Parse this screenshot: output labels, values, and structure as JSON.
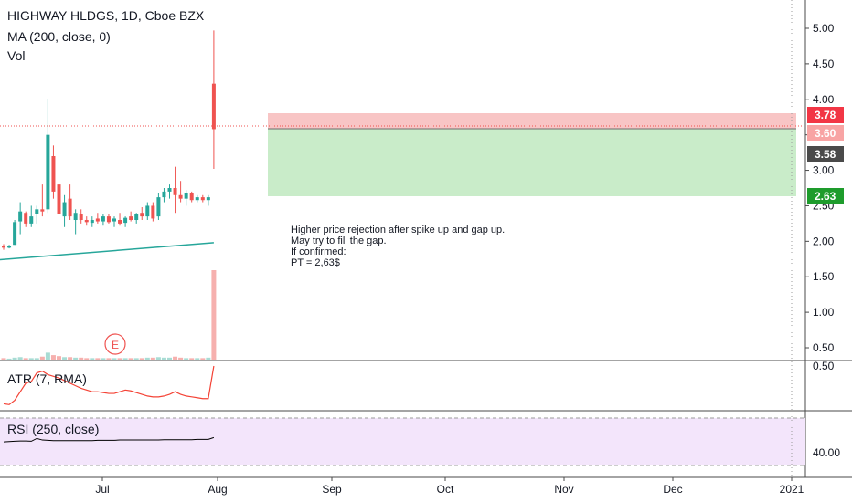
{
  "header": {
    "symbol_line": "HIGHWAY HLDGS, 1D, Cboe BZX",
    "ma_label": "MA (200, close, 0)",
    "vol_label": "Vol"
  },
  "earnings_marker": "E",
  "annotation": {
    "lines": [
      "Higher price rejection after spike up and gap up.",
      "May try to fill the gap.",
      "If confirmed:",
      "PT = 2,63$"
    ]
  },
  "price_tags": {
    "stop": "3.78",
    "entry": "3.60",
    "last": "3.58",
    "target": "2.63"
  },
  "colors": {
    "up": "#26a69a",
    "down": "#ef5350",
    "ma": "#26a69a",
    "atr": "#f44336",
    "rsi": "#000000",
    "stop_zone": "#f8c5c5",
    "profit_zone": "#c9ecc9",
    "rsi_band": "#f3e5fb",
    "tag_red": "#f23645",
    "tag_green": "#1e9c2c",
    "tag_gray": "#4a4a4a"
  },
  "chart_data": [
    {
      "type": "candlestick",
      "title": "HIGHWAY HLDGS, 1D, Cboe BZX",
      "ylim": [
        0.4,
        5.2
      ],
      "y_ticks": [
        "5.00",
        "4.50",
        "4.00",
        "3.50",
        "3.00",
        "2.50",
        "2.00",
        "1.50",
        "1.00",
        "0.50"
      ],
      "x_ticks": [
        "Jul",
        "Aug",
        "Sep",
        "Oct",
        "Nov",
        "Dec",
        "2021"
      ],
      "candles": [
        {
          "o": 1.93,
          "h": 1.96,
          "l": 1.88,
          "c": 1.91
        },
        {
          "o": 1.91,
          "h": 1.95,
          "l": 1.9,
          "c": 1.93
        },
        {
          "o": 1.95,
          "h": 2.3,
          "l": 1.95,
          "c": 2.27
        },
        {
          "o": 2.28,
          "h": 2.55,
          "l": 2.1,
          "c": 2.42
        },
        {
          "o": 2.4,
          "h": 2.42,
          "l": 2.2,
          "c": 2.25
        },
        {
          "o": 2.25,
          "h": 2.5,
          "l": 2.2,
          "c": 2.35
        },
        {
          "o": 2.38,
          "h": 2.5,
          "l": 2.25,
          "c": 2.45
        },
        {
          "o": 2.45,
          "h": 2.8,
          "l": 2.35,
          "c": 2.42
        },
        {
          "o": 2.45,
          "h": 4.0,
          "l": 2.4,
          "c": 3.5
        },
        {
          "o": 3.2,
          "h": 3.35,
          "l": 2.6,
          "c": 2.7
        },
        {
          "o": 2.8,
          "h": 3.0,
          "l": 2.3,
          "c": 2.38
        },
        {
          "o": 2.35,
          "h": 2.65,
          "l": 2.2,
          "c": 2.55
        },
        {
          "o": 2.6,
          "h": 2.8,
          "l": 2.3,
          "c": 2.35
        },
        {
          "o": 2.3,
          "h": 2.45,
          "l": 2.1,
          "c": 2.4
        },
        {
          "o": 2.38,
          "h": 2.45,
          "l": 2.25,
          "c": 2.3
        },
        {
          "o": 2.3,
          "h": 2.35,
          "l": 2.22,
          "c": 2.27
        },
        {
          "o": 2.26,
          "h": 2.35,
          "l": 2.2,
          "c": 2.3
        },
        {
          "o": 2.32,
          "h": 2.4,
          "l": 2.25,
          "c": 2.28
        },
        {
          "o": 2.28,
          "h": 2.38,
          "l": 2.22,
          "c": 2.35
        },
        {
          "o": 2.35,
          "h": 2.38,
          "l": 2.25,
          "c": 2.27
        },
        {
          "o": 2.28,
          "h": 2.35,
          "l": 2.2,
          "c": 2.32
        },
        {
          "o": 2.3,
          "h": 2.4,
          "l": 2.22,
          "c": 2.25
        },
        {
          "o": 2.26,
          "h": 2.35,
          "l": 2.2,
          "c": 2.33
        },
        {
          "o": 2.35,
          "h": 2.42,
          "l": 2.28,
          "c": 2.3
        },
        {
          "o": 2.3,
          "h": 2.4,
          "l": 2.25,
          "c": 2.38
        },
        {
          "o": 2.4,
          "h": 2.48,
          "l": 2.3,
          "c": 2.35
        },
        {
          "o": 2.35,
          "h": 2.55,
          "l": 2.3,
          "c": 2.5
        },
        {
          "o": 2.5,
          "h": 2.55,
          "l": 2.28,
          "c": 2.32
        },
        {
          "o": 2.35,
          "h": 2.68,
          "l": 2.3,
          "c": 2.62
        },
        {
          "o": 2.62,
          "h": 2.75,
          "l": 2.55,
          "c": 2.7
        },
        {
          "o": 2.7,
          "h": 2.8,
          "l": 2.6,
          "c": 2.75
        },
        {
          "o": 2.75,
          "h": 3.05,
          "l": 2.4,
          "c": 2.65
        },
        {
          "o": 2.65,
          "h": 2.85,
          "l": 2.55,
          "c": 2.6
        },
        {
          "o": 2.6,
          "h": 2.72,
          "l": 2.5,
          "c": 2.68
        },
        {
          "o": 2.68,
          "h": 2.7,
          "l": 2.55,
          "c": 2.58
        },
        {
          "o": 2.58,
          "h": 2.65,
          "l": 2.55,
          "c": 2.62
        },
        {
          "o": 2.62,
          "h": 2.65,
          "l": 2.55,
          "c": 2.58
        },
        {
          "o": 2.58,
          "h": 2.65,
          "l": 2.5,
          "c": 2.62
        },
        {
          "o": 4.22,
          "h": 4.97,
          "l": 3.02,
          "c": 3.58
        }
      ],
      "volumes": [
        0.3,
        0.2,
        0.4,
        0.5,
        0.3,
        0.3,
        0.3,
        0.6,
        1.4,
        0.9,
        0.7,
        0.5,
        0.5,
        0.4,
        0.4,
        0.3,
        0.3,
        0.3,
        0.3,
        0.3,
        0.3,
        0.3,
        0.3,
        0.3,
        0.3,
        0.3,
        0.4,
        0.4,
        0.5,
        0.4,
        0.4,
        0.6,
        0.4,
        0.3,
        0.3,
        0.3,
        0.3,
        0.4,
        18.0
      ],
      "ma_200": {
        "start": 1.83,
        "end": 1.98
      },
      "long_short_position": {
        "stop": 3.78,
        "entry": 3.6,
        "target": 2.63
      }
    },
    {
      "type": "line",
      "title": "ATR (7, RMA)",
      "y_ticks": [
        "0.50"
      ],
      "values": [
        0.06,
        0.05,
        0.1,
        0.2,
        0.3,
        0.32,
        0.42,
        0.44,
        0.4,
        0.38,
        0.36,
        0.33,
        0.3,
        0.27,
        0.24,
        0.22,
        0.2,
        0.2,
        0.19,
        0.18,
        0.18,
        0.2,
        0.22,
        0.21,
        0.19,
        0.17,
        0.15,
        0.14,
        0.14,
        0.15,
        0.17,
        0.2,
        0.17,
        0.15,
        0.14,
        0.13,
        0.12,
        0.12,
        0.5
      ]
    },
    {
      "type": "line",
      "title": "RSI (250, close)",
      "y_ticks": [
        "40.00"
      ],
      "values": [
        43.5,
        43.6,
        43.7,
        43.8,
        43.8,
        43.7,
        44.6,
        44.1,
        44.0,
        43.9,
        43.9,
        43.9,
        43.9,
        43.9,
        43.9,
        43.9,
        43.9,
        44.0,
        44.0,
        44.0,
        44.0,
        44.1,
        44.1,
        44.1,
        44.1,
        44.1,
        44.1,
        44.1,
        44.1,
        44.2,
        44.2,
        44.2,
        44.2,
        44.2,
        44.2,
        44.3,
        44.3,
        44.3,
        44.9
      ]
    }
  ]
}
